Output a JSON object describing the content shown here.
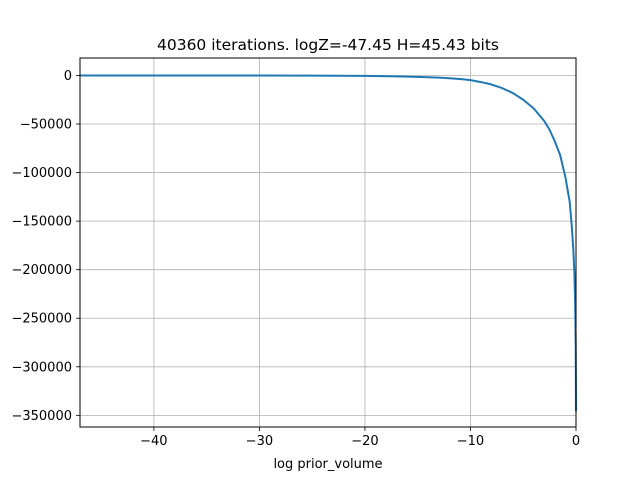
{
  "chart_data": {
    "type": "line",
    "title": "40360 iterations. logZ=-47.45 H=45.43 bits",
    "xlabel": "log prior_volume",
    "ylabel": "",
    "xlim": [
      -47,
      0
    ],
    "ylim": [
      -362000,
      18000
    ],
    "grid": true,
    "legend": "none",
    "line_color": "#1f77b4",
    "x_ticks": [
      -40,
      -30,
      -20,
      -10,
      0
    ],
    "x_tick_labels": [
      "−40",
      "−30",
      "−20",
      "−10",
      "0"
    ],
    "y_ticks": [
      0,
      -50000,
      -100000,
      -150000,
      -200000,
      -250000,
      -300000,
      -350000
    ],
    "y_tick_labels": [
      "0",
      "−50000",
      "−100000",
      "−150000",
      "−200000",
      "−250000",
      "−300000",
      "−350000"
    ],
    "series": [
      {
        "x": [
          -47,
          -40,
          -30,
          -25,
          -20,
          -17,
          -15,
          -13,
          -12,
          -11,
          -10,
          -9,
          -8,
          -7,
          -6,
          -5,
          -4,
          -3,
          -2.5,
          -2,
          -1.5,
          -1,
          -0.6,
          -0.4,
          -0.25,
          -0.15,
          -0.08,
          -0.03,
          -0.01,
          0
        ],
        "y": [
          0,
          0,
          -80,
          -180,
          -450,
          -900,
          -1400,
          -2200,
          -2800,
          -3600,
          -4800,
          -6800,
          -9300,
          -13000,
          -18000,
          -25000,
          -34000,
          -47000,
          -56000,
          -68000,
          -82000,
          -105000,
          -130000,
          -155000,
          -180000,
          -205000,
          -235000,
          -275000,
          -315000,
          -345000
        ]
      }
    ]
  }
}
